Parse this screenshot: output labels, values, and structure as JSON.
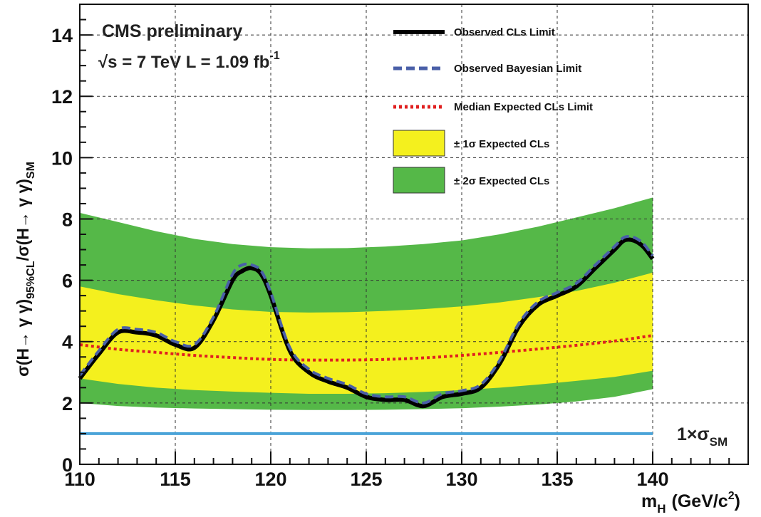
{
  "chart_data": {
    "type": "line",
    "xlabel": "m",
    "xlabel_sub": "H",
    "xlabel_unit": "(GeV/c",
    "xlabel_unit_sup": "2",
    "xlabel_close": ")",
    "ylabel_parts": {
      "a": "σ(H→ γ γ)",
      "a_sub": "95%CL",
      "b": "/σ(H→ γ γ)",
      "b_sub": "SM"
    },
    "xlim": [
      110,
      145
    ],
    "ylim": [
      0,
      15
    ],
    "x_ticks": [
      110,
      115,
      120,
      125,
      130,
      135,
      140
    ],
    "y_ticks": [
      0,
      2,
      4,
      6,
      8,
      10,
      12,
      14
    ],
    "grid": true,
    "annotations": {
      "experiment": "CMS preliminary",
      "energy_prefix": "√s = 7 TeV  L = 1.09 fb",
      "energy_sup": "-1",
      "sm_label": "1×σ",
      "sm_label_sub": "SM"
    },
    "legend": {
      "position": "top-right",
      "entries": [
        {
          "label": "Observed CLs Limit",
          "style": "solid",
          "color": "#000000"
        },
        {
          "label": "Observed Bayesian Limit",
          "style": "dashed",
          "color": "#4a5fa8"
        },
        {
          "label": "Median Expected CLs Limit",
          "style": "dotted",
          "color": "#e02020"
        },
        {
          "label": "± 1σ Expected CLs",
          "style": "box",
          "color": "#f4f01e"
        },
        {
          "label": "± 2σ Expected CLs",
          "style": "box",
          "color": "#55b848"
        }
      ]
    },
    "x": [
      110,
      111,
      112,
      113,
      114,
      115,
      116,
      117,
      118,
      118.5,
      119,
      119.5,
      120,
      121,
      122,
      123,
      124,
      125,
      126,
      127,
      128,
      129,
      130,
      131,
      132,
      133,
      134,
      135,
      136,
      137,
      138,
      138.5,
      139,
      139.5,
      140
    ],
    "series": [
      {
        "name": "Observed CLs Limit",
        "values": [
          2.8,
          3.6,
          4.3,
          4.3,
          4.2,
          3.9,
          3.8,
          4.7,
          6.0,
          6.3,
          6.4,
          6.2,
          5.5,
          3.7,
          3.0,
          2.7,
          2.5,
          2.2,
          2.1,
          2.1,
          1.9,
          2.2,
          2.3,
          2.5,
          3.3,
          4.5,
          5.2,
          5.5,
          5.8,
          6.4,
          7.0,
          7.3,
          7.3,
          7.1,
          6.7
        ]
      },
      {
        "name": "Observed Bayesian Limit",
        "values": [
          2.9,
          3.7,
          4.4,
          4.4,
          4.3,
          4.0,
          3.9,
          4.8,
          6.2,
          6.5,
          6.5,
          6.3,
          5.6,
          3.8,
          3.1,
          2.8,
          2.6,
          2.3,
          2.2,
          2.2,
          2.0,
          2.3,
          2.4,
          2.6,
          3.4,
          4.6,
          5.3,
          5.6,
          5.9,
          6.5,
          7.1,
          7.4,
          7.4,
          7.2,
          6.8
        ]
      }
    ],
    "expected_x": [
      110,
      112,
      114,
      116,
      118,
      120,
      122,
      124,
      126,
      128,
      130,
      132,
      134,
      136,
      138,
      140
    ],
    "expected_median": [
      3.9,
      3.75,
      3.65,
      3.55,
      3.48,
      3.42,
      3.4,
      3.4,
      3.42,
      3.47,
      3.55,
      3.65,
      3.76,
      3.88,
      4.02,
      4.2
    ],
    "band_1sigma_low": [
      2.8,
      2.62,
      2.5,
      2.42,
      2.37,
      2.33,
      2.3,
      2.3,
      2.32,
      2.36,
      2.42,
      2.5,
      2.6,
      2.72,
      2.85,
      3.05
    ],
    "band_1sigma_high": [
      5.8,
      5.55,
      5.35,
      5.18,
      5.05,
      4.97,
      4.95,
      4.96,
      5.0,
      5.06,
      5.15,
      5.28,
      5.45,
      5.65,
      5.92,
      6.25
    ],
    "band_2sigma_low": [
      2.0,
      1.9,
      1.85,
      1.82,
      1.8,
      1.78,
      1.77,
      1.77,
      1.78,
      1.8,
      1.83,
      1.88,
      1.95,
      2.05,
      2.2,
      2.45
    ],
    "band_2sigma_high": [
      8.2,
      7.9,
      7.6,
      7.35,
      7.18,
      7.08,
      7.04,
      7.05,
      7.1,
      7.18,
      7.3,
      7.5,
      7.75,
      8.05,
      8.35,
      8.7
    ],
    "sm_line": 1.0,
    "colors": {
      "observed": "#000000",
      "bayesian": "#4a5fa8",
      "median": "#e02020",
      "band1": "#f4f01e",
      "band2": "#55b848",
      "sm_line": "#4aa3d8",
      "grid": "#333333"
    }
  }
}
